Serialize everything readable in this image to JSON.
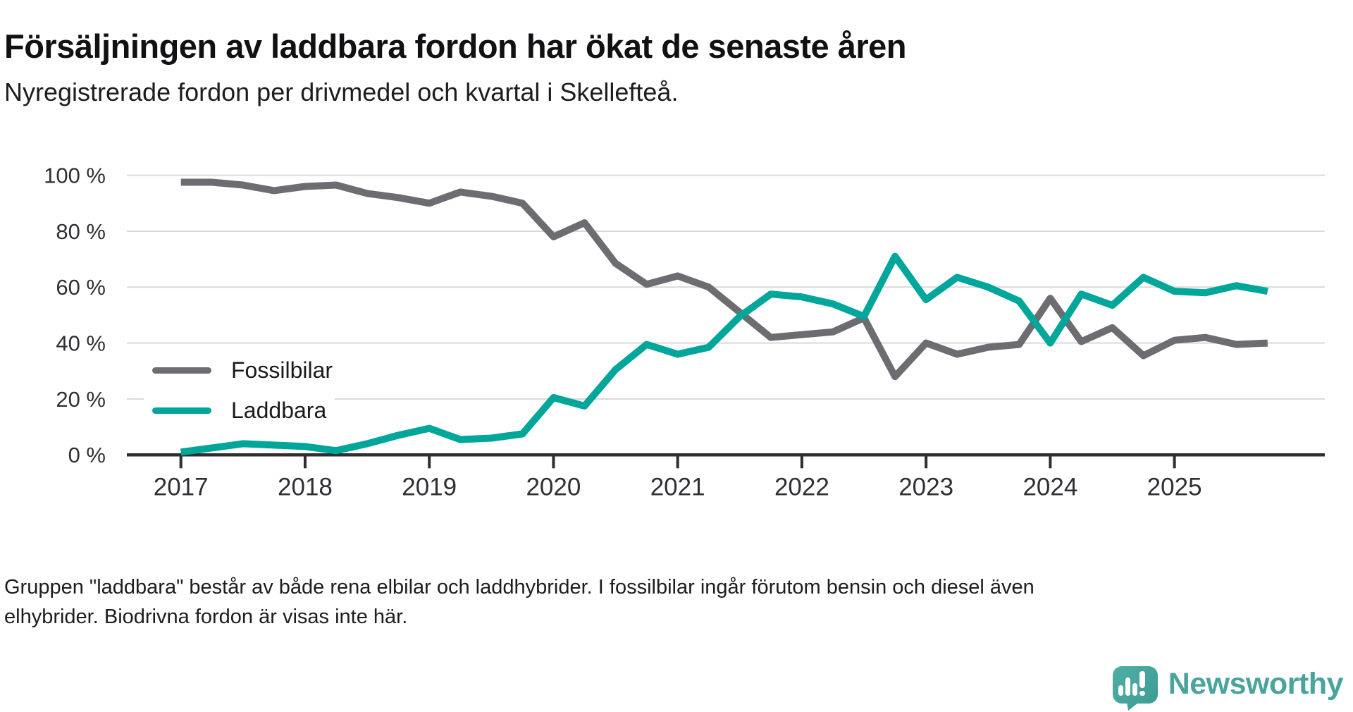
{
  "header": {
    "title": "Försäljningen av laddbara fordon har ökat de senaste åren",
    "subtitle": "Nyregistrerade fordon per drivmedel och kvartal i Skellefteå."
  },
  "chart_data": {
    "type": "line",
    "title": "Försäljningen av laddbara fordon har ökat de senaste åren",
    "subtitle": "Nyregistrerade fordon per drivmedel och kvartal i Skellefteå.",
    "unit": "%",
    "ylim": [
      0,
      100
    ],
    "grid": "horizontal",
    "legend_position": "inside-left",
    "y_ticks": [
      {
        "value": 0,
        "label": "0 %"
      },
      {
        "value": 20,
        "label": "20 %"
      },
      {
        "value": 40,
        "label": "40 %"
      },
      {
        "value": 60,
        "label": "60 %"
      },
      {
        "value": 80,
        "label": "80 %"
      },
      {
        "value": 100,
        "label": "100 %"
      }
    ],
    "x_ticks": [
      {
        "index": 0,
        "label": "2017"
      },
      {
        "index": 4,
        "label": "2018"
      },
      {
        "index": 8,
        "label": "2019"
      },
      {
        "index": 12,
        "label": "2020"
      },
      {
        "index": 16,
        "label": "2021"
      },
      {
        "index": 20,
        "label": "2022"
      },
      {
        "index": 24,
        "label": "2023"
      },
      {
        "index": 28,
        "label": "2024"
      },
      {
        "index": 32,
        "label": "2025"
      }
    ],
    "categories": [
      "2017 Q1",
      "2017 Q2",
      "2017 Q3",
      "2017 Q4",
      "2018 Q1",
      "2018 Q2",
      "2018 Q3",
      "2018 Q4",
      "2019 Q1",
      "2019 Q2",
      "2019 Q3",
      "2019 Q4",
      "2020 Q1",
      "2020 Q2",
      "2020 Q3",
      "2020 Q4",
      "2021 Q1",
      "2021 Q2",
      "2021 Q3",
      "2021 Q4",
      "2022 Q1",
      "2022 Q2",
      "2022 Q3",
      "2022 Q4",
      "2023 Q1",
      "2023 Q2",
      "2023 Q3",
      "2023 Q4",
      "2024 Q1",
      "2024 Q2",
      "2024 Q3",
      "2024 Q4",
      "2025 Q1",
      "2025 Q2",
      "2025 Q3",
      "2025 Q4"
    ],
    "series": [
      {
        "name": "Fossilbilar",
        "color": "#6d6c70",
        "values": [
          97.5,
          97.5,
          96.5,
          94.5,
          96,
          96.5,
          93.5,
          92,
          90,
          94,
          92.5,
          90,
          78,
          83,
          68.5,
          61,
          64,
          60,
          51,
          42,
          43,
          44,
          49,
          28,
          40,
          36,
          38.5,
          39.5,
          56,
          40.5,
          45.5,
          35.5,
          41,
          42,
          39.5,
          40
        ]
      },
      {
        "name": "Laddbara",
        "color": "#00a69a",
        "values": [
          1,
          2.5,
          4,
          3.5,
          3,
          1.5,
          4,
          7,
          9.5,
          5.5,
          6,
          7.5,
          20.5,
          17.5,
          30.5,
          39.5,
          36,
          38.5,
          49.5,
          57.5,
          56.5,
          54,
          49.5,
          71,
          55.5,
          63.5,
          60,
          55,
          40,
          57.5,
          53.5,
          63.5,
          58.5,
          58,
          60.5,
          58.5
        ]
      }
    ]
  },
  "footnote": {
    "lines": [
      "Gruppen \"laddbara\" består av både rena elbilar och laddhybrider. I fossilbilar ingår förutom bensin och diesel även",
      "elhybrider. Biodrivna fordon är visas inte här."
    ]
  },
  "brand": {
    "name": "Newsworthy",
    "logo_icon": "newsworthy-speech-bubble-bar-chart-icon",
    "color": "#4aa49d"
  },
  "colors": {
    "axis": "#2e2e31",
    "grid": "#d9d9d9",
    "tick_text": "#303034",
    "line_fossil": "#6d6c70",
    "line_laddbara": "#00a69a"
  }
}
